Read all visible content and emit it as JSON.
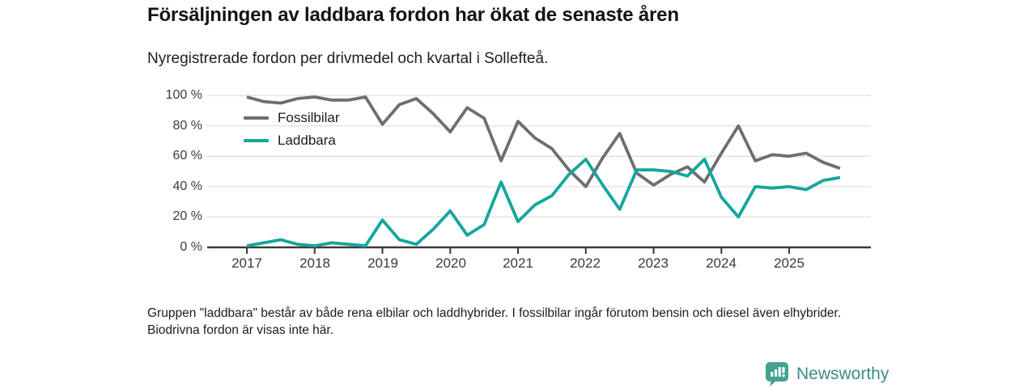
{
  "header": {
    "title": "Försäljningen av laddbara fordon har ökat de senaste åren",
    "subtitle": "Nyregistrerade fordon per drivmedel och kvartal i Sollefteå."
  },
  "chart_data": {
    "type": "line",
    "title": "Försäljningen av laddbara fordon har ökat de senaste åren",
    "subtitle": "Nyregistrerade fordon per drivmedel och kvartal i Sollefteå.",
    "x_unit": "kvartal",
    "categories": [
      "2017 Q1",
      "2017 Q2",
      "2017 Q3",
      "2017 Q4",
      "2018 Q1",
      "2018 Q2",
      "2018 Q3",
      "2018 Q4",
      "2019 Q1",
      "2019 Q2",
      "2019 Q3",
      "2019 Q4",
      "2020 Q1",
      "2020 Q2",
      "2020 Q3",
      "2020 Q4",
      "2021 Q1",
      "2021 Q2",
      "2021 Q3",
      "2021 Q4",
      "2022 Q1",
      "2022 Q2",
      "2022 Q3",
      "2022 Q4",
      "2023 Q1",
      "2023 Q2",
      "2023 Q3",
      "2023 Q4",
      "2024 Q1",
      "2024 Q2",
      "2024 Q3",
      "2024 Q4",
      "2025 Q1",
      "2025 Q2",
      "2025 Q3",
      "2025 Q4"
    ],
    "series": [
      {
        "name": "Fossilbilar",
        "color": "#6e6e6e",
        "unit": "%",
        "values": [
          99,
          96,
          95,
          98,
          99,
          97,
          97,
          99,
          81,
          94,
          98,
          88,
          76,
          92,
          85,
          57,
          83,
          72,
          65,
          51,
          40,
          59,
          75,
          49,
          41,
          48,
          53,
          43,
          62,
          80,
          57,
          61,
          60,
          62,
          56,
          52
        ]
      },
      {
        "name": "Laddbara",
        "color": "#14a69c",
        "unit": "%",
        "values": [
          1,
          3,
          5,
          2,
          1,
          3,
          2,
          1,
          18,
          5,
          2,
          12,
          24,
          8,
          15,
          43,
          17,
          28,
          34,
          48,
          58,
          41,
          25,
          51,
          51,
          50,
          47,
          58,
          33,
          20,
          40,
          39,
          40,
          38,
          44,
          46
        ]
      }
    ],
    "ylim": [
      0,
      100
    ],
    "yticks": [
      "100 %",
      "80 %",
      "60 %",
      "40 %",
      "20 %",
      "0 %"
    ],
    "ytick_values": [
      100,
      80,
      60,
      40,
      20,
      0
    ],
    "xticks": [
      "2017",
      "2018",
      "2019",
      "2020",
      "2021",
      "2022",
      "2023",
      "2024",
      "2025"
    ],
    "xtick_quarter_indices": [
      0,
      4,
      8,
      12,
      16,
      20,
      24,
      28,
      32
    ],
    "grid": "horizontal",
    "legend_position": "inside-top-left"
  },
  "footnote": {
    "text": "Gruppen \"laddbara\" består av både rena elbilar och laddhybrider. I fossilbilar ingår förutom bensin och diesel även elhybrider. Biodrivna fordon är visas inte här."
  },
  "branding": {
    "logo_text": "Newsworthy",
    "logo_icon": "bar-chart-pin-icon",
    "icon_color": "#46a095",
    "text_color": "#3b8c85"
  }
}
